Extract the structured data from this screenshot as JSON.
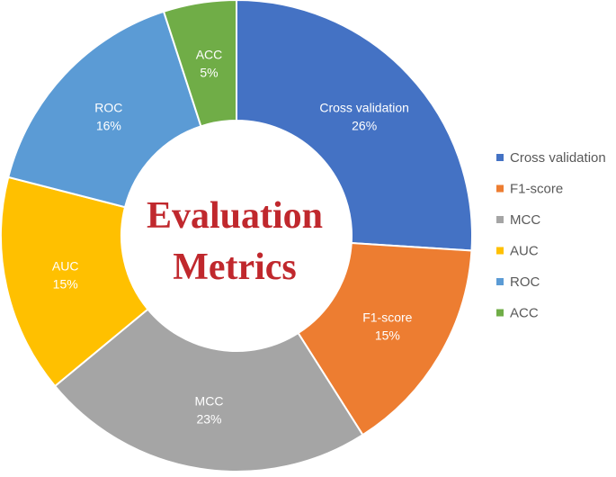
{
  "chart_data": {
    "type": "pie",
    "variant": "donut",
    "center_text": [
      "Evaluation",
      "Metrics"
    ],
    "categories": [
      "Cross validation",
      "F1-score",
      "MCC",
      "AUC",
      "ROC",
      "ACC"
    ],
    "values": [
      26,
      15,
      23,
      15,
      16,
      5
    ],
    "unit": "%",
    "data_labels": [
      "26%",
      "15%",
      "23%",
      "15%",
      "16%",
      "5%"
    ],
    "colors": [
      "#4472c4",
      "#ed7d31",
      "#a5a5a5",
      "#ffc000",
      "#5b9bd5",
      "#70ad47"
    ],
    "legend_position": "right",
    "start_angle_deg": 0,
    "direction": "clockwise"
  }
}
